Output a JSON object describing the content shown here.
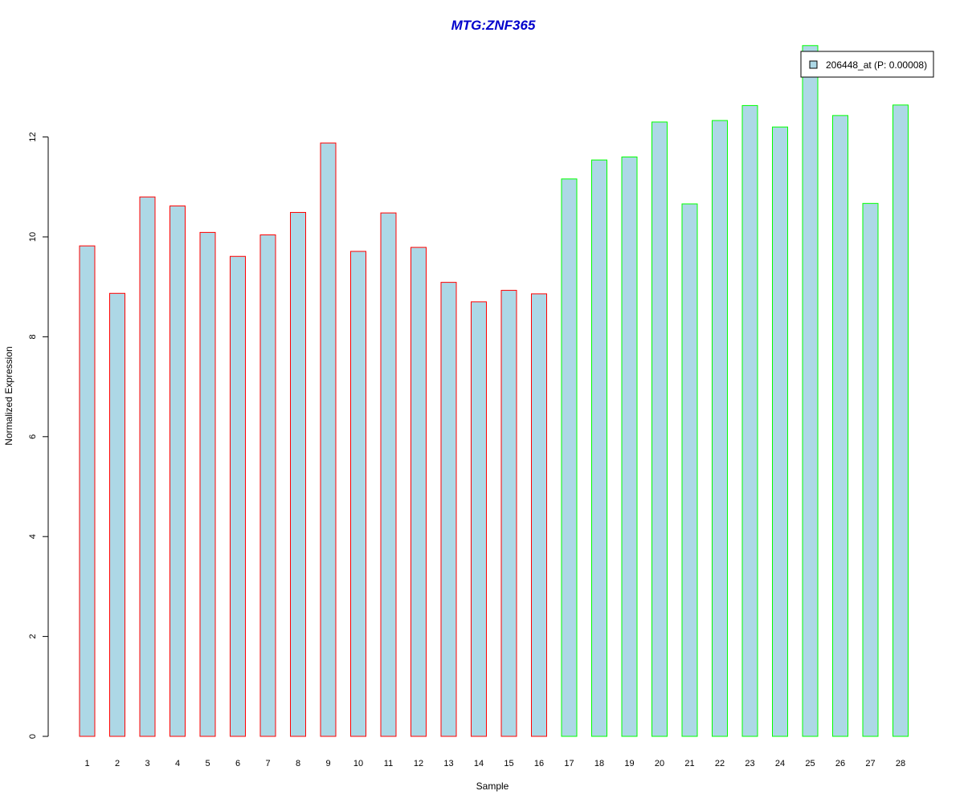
{
  "chart_data": {
    "type": "bar",
    "title": "MTG:ZNF365",
    "xlabel": "Sample",
    "ylabel": "Normalized Expression",
    "ylim": [
      0,
      13.8
    ],
    "yticks": [
      0,
      2,
      4,
      6,
      8,
      10,
      12
    ],
    "categories": [
      "1",
      "2",
      "3",
      "4",
      "5",
      "6",
      "7",
      "8",
      "9",
      "10",
      "11",
      "12",
      "13",
      "14",
      "15",
      "16",
      "17",
      "18",
      "19",
      "20",
      "21",
      "22",
      "23",
      "24",
      "25",
      "26",
      "27",
      "28"
    ],
    "series": [
      {
        "name": "206448_at (P: 0.00008)",
        "values": [
          9.82,
          8.87,
          10.8,
          10.62,
          10.09,
          9.61,
          10.04,
          10.49,
          11.88,
          9.71,
          10.48,
          9.79,
          9.09,
          8.7,
          8.93,
          8.86,
          11.16,
          11.54,
          11.6,
          12.3,
          10.66,
          12.33,
          12.63,
          12.2,
          13.83,
          12.43,
          10.67,
          12.64
        ]
      }
    ],
    "bar_fill": "#add8e6",
    "group_border_colors": [
      "#ff0000",
      "#ff0000",
      "#ff0000",
      "#ff0000",
      "#ff0000",
      "#ff0000",
      "#ff0000",
      "#ff0000",
      "#ff0000",
      "#ff0000",
      "#ff0000",
      "#ff0000",
      "#ff0000",
      "#ff0000",
      "#ff0000",
      "#ff0000",
      "#00ff00",
      "#00ff00",
      "#00ff00",
      "#00ff00",
      "#00ff00",
      "#00ff00",
      "#00ff00",
      "#00ff00",
      "#00ff00",
      "#00ff00",
      "#00ff00",
      "#00ff00"
    ],
    "title_color": "#0000cc",
    "legend_position": "top-right",
    "grid": false
  }
}
